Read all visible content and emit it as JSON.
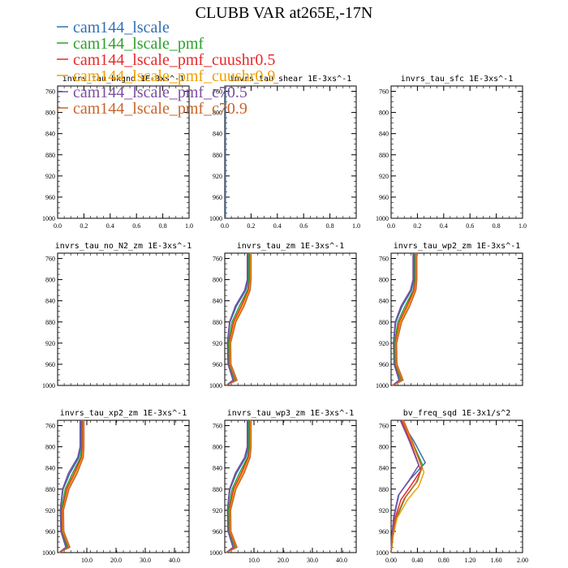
{
  "chart_data": {
    "type": "line",
    "title": "CLUBB VAR at265E,-17N",
    "legend": {
      "placement": "top-left",
      "entries": [
        {
          "name": "cam144_lscale",
          "color": "#2f6fb3"
        },
        {
          "name": "cam144_lscale_pmf",
          "color": "#2ca02c"
        },
        {
          "name": "cam144_lscale_pmf_cuushr0.5",
          "color": "#e8282b"
        },
        {
          "name": "cam144_lscale_pmf_cuushr0.9",
          "color": "#f0a000"
        },
        {
          "name": "cam144_lscale_pmf_c70.5",
          "color": "#7b4fa0"
        },
        {
          "name": "cam144_lscale_pmf_c70.9",
          "color": "#c8642a"
        }
      ]
    },
    "y_axis": {
      "ylim": [
        750,
        1000
      ],
      "inverted": true,
      "ticks": [
        760,
        800,
        840,
        880,
        920,
        960,
        1000
      ]
    },
    "panels": [
      {
        "title": "invrs_tau_bkgnd   1E-3xs^-1",
        "xlim": [
          0,
          1
        ],
        "xticks": [
          "0.0",
          "0.2",
          "0.4",
          "0.6",
          "0.8",
          "1.0"
        ],
        "series": []
      },
      {
        "title": "invrs_tau_shear   1E-3xs^-1",
        "xlim": [
          0,
          1
        ],
        "xticks": [
          "0.0",
          "0.2",
          "0.4",
          "0.6",
          "0.8",
          "1.0"
        ],
        "series": [
          {
            "name": "cam144_lscale",
            "x": [
              0.005,
              0.005
            ],
            "y": [
              750,
              1000
            ]
          }
        ]
      },
      {
        "title": "invrs_tau_sfc   1E-3xs^-1",
        "xlim": [
          0,
          1
        ],
        "xticks": [
          "0.0",
          "0.2",
          "0.4",
          "0.6",
          "0.8",
          "1.0"
        ],
        "series": []
      },
      {
        "title": "invrs_tau_no_N2_zm   1E-3xs^-1",
        "xlim": [
          0,
          1
        ],
        "xticks": [],
        "series": []
      },
      {
        "title": "invrs_tau_zm   1E-3xs^-1",
        "xlim": [
          0,
          45
        ],
        "xticks": [],
        "series": [
          {
            "name": "cam144_lscale",
            "x": [
              8.0,
              8.0,
              7.2,
              4.0,
              1.8,
              1.0,
              1.2,
              3.0,
              0.5
            ],
            "y": [
              750,
              800,
              820,
              850,
              880,
              920,
              960,
              990,
              1000
            ]
          },
          {
            "name": "cam144_lscale_pmf",
            "x": [
              8.3,
              8.3,
              7.8,
              5.0,
              2.5,
              1.3,
              1.5,
              3.5,
              0.5
            ],
            "y": [
              750,
              800,
              820,
              850,
              880,
              920,
              960,
              990,
              1000
            ]
          },
          {
            "name": "cam144_lscale_pmf_cuushr0.5",
            "x": [
              8.6,
              8.6,
              8.1,
              5.6,
              3.0,
              1.6,
              1.7,
              3.8,
              0.5
            ],
            "y": [
              750,
              800,
              820,
              850,
              880,
              920,
              960,
              990,
              1000
            ]
          },
          {
            "name": "cam144_lscale_pmf_cuushr0.9",
            "x": [
              8.8,
              8.8,
              8.4,
              6.1,
              3.4,
              1.8,
              1.9,
              4.0,
              0.5
            ],
            "y": [
              750,
              800,
              820,
              850,
              880,
              920,
              960,
              990,
              1000
            ]
          },
          {
            "name": "cam144_lscale_pmf_c70.5",
            "x": [
              7.7,
              7.7,
              6.8,
              3.6,
              1.6,
              0.9,
              1.1,
              2.8,
              0.5
            ],
            "y": [
              750,
              800,
              820,
              850,
              880,
              920,
              960,
              990,
              1000
            ]
          },
          {
            "name": "cam144_lscale_pmf_c70.9",
            "x": [
              9.0,
              9.0,
              8.7,
              6.6,
              3.8,
              2.0,
              2.1,
              4.2,
              0.5
            ],
            "y": [
              750,
              800,
              820,
              850,
              880,
              920,
              960,
              990,
              1000
            ]
          }
        ]
      },
      {
        "title": "invrs_tau_wp2_zm   1E-3xs^-1",
        "xlim": [
          0,
          45
        ],
        "xticks": [],
        "series": [
          {
            "name": "cam144_lscale",
            "x": [
              7.8,
              7.8,
              7.0,
              3.8,
              1.6,
              0.9,
              1.1,
              2.9,
              0.5
            ],
            "y": [
              750,
              800,
              820,
              850,
              880,
              920,
              960,
              990,
              1000
            ]
          },
          {
            "name": "cam144_lscale_pmf",
            "x": [
              8.1,
              8.1,
              7.6,
              4.8,
              2.3,
              1.2,
              1.4,
              3.4,
              0.5
            ],
            "y": [
              750,
              800,
              820,
              850,
              880,
              920,
              960,
              990,
              1000
            ]
          },
          {
            "name": "cam144_lscale_pmf_cuushr0.5",
            "x": [
              8.4,
              8.4,
              7.9,
              5.4,
              2.8,
              1.5,
              1.6,
              3.7,
              0.5
            ],
            "y": [
              750,
              800,
              820,
              850,
              880,
              920,
              960,
              990,
              1000
            ]
          },
          {
            "name": "cam144_lscale_pmf_cuushr0.9",
            "x": [
              8.6,
              8.6,
              8.2,
              5.9,
              3.2,
              1.7,
              1.8,
              3.9,
              0.5
            ],
            "y": [
              750,
              800,
              820,
              850,
              880,
              920,
              960,
              990,
              1000
            ]
          },
          {
            "name": "cam144_lscale_pmf_c70.5",
            "x": [
              7.5,
              7.5,
              6.6,
              3.4,
              1.4,
              0.8,
              1.0,
              2.7,
              0.5
            ],
            "y": [
              750,
              800,
              820,
              850,
              880,
              920,
              960,
              990,
              1000
            ]
          },
          {
            "name": "cam144_lscale_pmf_c70.9",
            "x": [
              8.8,
              8.8,
              8.5,
              6.4,
              3.6,
              1.9,
              2.0,
              4.1,
              0.5
            ],
            "y": [
              750,
              800,
              820,
              850,
              880,
              920,
              960,
              990,
              1000
            ]
          }
        ]
      },
      {
        "title": "invrs_tau_xp2_zm   1E-3xs^-1",
        "xlim": [
          0,
          45
        ],
        "xticks": [
          "10.0",
          "20.0",
          "30.0",
          "40.0"
        ],
        "series": [
          {
            "name": "cam144_lscale",
            "x": [
              8.0,
              8.0,
              7.3,
              4.2,
              1.9,
              1.0,
              1.2,
              3.1,
              0.5
            ],
            "y": [
              750,
              800,
              820,
              850,
              880,
              920,
              960,
              990,
              1000
            ]
          },
          {
            "name": "cam144_lscale_pmf",
            "x": [
              8.3,
              8.3,
              7.9,
              5.1,
              2.6,
              1.3,
              1.5,
              3.5,
              0.5
            ],
            "y": [
              750,
              800,
              820,
              850,
              880,
              920,
              960,
              990,
              1000
            ]
          },
          {
            "name": "cam144_lscale_pmf_cuushr0.5",
            "x": [
              8.6,
              8.6,
              8.2,
              5.7,
              3.1,
              1.6,
              1.7,
              3.8,
              0.5
            ],
            "y": [
              750,
              800,
              820,
              850,
              880,
              920,
              960,
              990,
              1000
            ]
          },
          {
            "name": "cam144_lscale_pmf_cuushr0.9",
            "x": [
              8.8,
              8.8,
              8.5,
              6.2,
              3.5,
              1.8,
              1.9,
              4.0,
              0.5
            ],
            "y": [
              750,
              800,
              820,
              850,
              880,
              920,
              960,
              990,
              1000
            ]
          },
          {
            "name": "cam144_lscale_pmf_c70.5",
            "x": [
              7.7,
              7.7,
              6.9,
              3.7,
              1.7,
              0.9,
              1.1,
              2.8,
              0.5
            ],
            "y": [
              750,
              800,
              820,
              850,
              880,
              920,
              960,
              990,
              1000
            ]
          },
          {
            "name": "cam144_lscale_pmf_c70.9",
            "x": [
              9.0,
              9.0,
              8.8,
              6.7,
              3.9,
              2.0,
              2.1,
              4.2,
              0.5
            ],
            "y": [
              750,
              800,
              820,
              850,
              880,
              920,
              960,
              990,
              1000
            ]
          }
        ]
      },
      {
        "title": "invrs_tau_wp3_zm   1E-3xs^-1",
        "xlim": [
          0,
          45
        ],
        "xticks": [
          "10.0",
          "20.0",
          "30.0",
          "40.0"
        ],
        "series": [
          {
            "name": "cam144_lscale",
            "x": [
              8.0,
              8.0,
              7.2,
              4.0,
              1.8,
              1.0,
              1.2,
              3.0,
              0.5
            ],
            "y": [
              750,
              800,
              820,
              850,
              880,
              920,
              960,
              990,
              1000
            ]
          },
          {
            "name": "cam144_lscale_pmf",
            "x": [
              8.3,
              8.3,
              7.8,
              5.0,
              2.5,
              1.3,
              1.5,
              3.5,
              0.5
            ],
            "y": [
              750,
              800,
              820,
              850,
              880,
              920,
              960,
              990,
              1000
            ]
          },
          {
            "name": "cam144_lscale_pmf_cuushr0.5",
            "x": [
              8.6,
              8.6,
              8.1,
              5.6,
              3.0,
              1.6,
              1.7,
              3.8,
              0.5
            ],
            "y": [
              750,
              800,
              820,
              850,
              880,
              920,
              960,
              990,
              1000
            ]
          },
          {
            "name": "cam144_lscale_pmf_cuushr0.9",
            "x": [
              8.8,
              8.8,
              8.4,
              6.1,
              3.4,
              1.8,
              1.9,
              4.0,
              0.5
            ],
            "y": [
              750,
              800,
              820,
              850,
              880,
              920,
              960,
              990,
              1000
            ]
          },
          {
            "name": "cam144_lscale_pmf_c70.5",
            "x": [
              7.7,
              7.7,
              6.8,
              3.6,
              1.6,
              0.9,
              1.1,
              2.8,
              0.5
            ],
            "y": [
              750,
              800,
              820,
              850,
              880,
              920,
              960,
              990,
              1000
            ]
          },
          {
            "name": "cam144_lscale_pmf_c70.9",
            "x": [
              9.0,
              9.0,
              8.7,
              6.6,
              3.8,
              2.0,
              2.1,
              4.2,
              0.5
            ],
            "y": [
              750,
              800,
              820,
              850,
              880,
              920,
              960,
              990,
              1000
            ]
          }
        ]
      },
      {
        "title": "bv_freq_sqd   1E-3x1/s^2",
        "xlim": [
          0,
          2
        ],
        "xticks": [
          "0.00",
          "0.40",
          "0.80",
          "1.20",
          "1.60",
          "2.00"
        ],
        "series": [
          {
            "name": "cam144_lscale",
            "x": [
              0.15,
              0.35,
              0.52,
              0.3,
              0.12,
              0.05,
              0.02,
              0.0
            ],
            "y": [
              750,
              790,
              830,
              860,
              890,
              930,
              970,
              1000
            ]
          },
          {
            "name": "cam144_lscale_pmf",
            "x": [
              0.17,
              0.32,
              0.48,
              0.4,
              0.22,
              0.08,
              0.03,
              0.0
            ],
            "y": [
              750,
              790,
              835,
              865,
              895,
              935,
              970,
              1000
            ]
          },
          {
            "name": "cam144_lscale_pmf_cuushr0.5",
            "x": [
              0.16,
              0.3,
              0.45,
              0.32,
              0.15,
              0.06,
              0.02,
              0.0
            ],
            "y": [
              750,
              792,
              845,
              870,
              900,
              935,
              970,
              1000
            ]
          },
          {
            "name": "cam144_lscale_pmf_cuushr0.9",
            "x": [
              0.18,
              0.33,
              0.5,
              0.42,
              0.25,
              0.09,
              0.03,
              0.0
            ],
            "y": [
              750,
              795,
              848,
              875,
              900,
              935,
              970,
              1000
            ]
          },
          {
            "name": "cam144_lscale_pmf_c70.5",
            "x": [
              0.14,
              0.28,
              0.42,
              0.28,
              0.11,
              0.04,
              0.01,
              0.0
            ],
            "y": [
              750,
              790,
              835,
              862,
              892,
              932,
              970,
              1000
            ]
          },
          {
            "name": "cam144_lscale_pmf_c70.9",
            "x": [
              0.19,
              0.34,
              0.47,
              0.38,
              0.2,
              0.07,
              0.02,
              0.0
            ],
            "y": [
              750,
              795,
              840,
              868,
              898,
              935,
              970,
              1000
            ]
          }
        ]
      }
    ]
  }
}
